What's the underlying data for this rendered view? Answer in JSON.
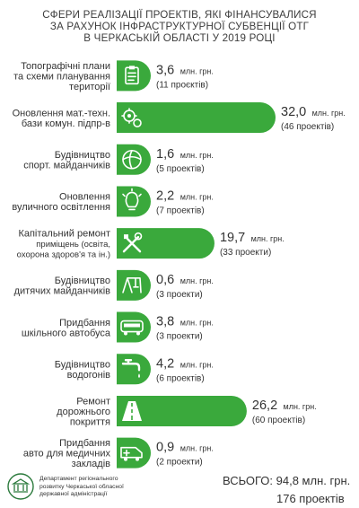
{
  "title": {
    "line1": "СФЕРИ РЕАЛІЗАЦІЇ ПРОЕКТІВ, ЯКІ ФІНАНСУВАЛИСЯ",
    "line2": "ЗА РАХУНОК ІНФРАСТРУКТУРНОЇ СУБВЕНЦІЇ ОТГ",
    "line3": "В ЧЕРКАСЬКІЙ ОБЛАСТІ У 2019 РОЦІ"
  },
  "colors": {
    "bar": "#3aa93c",
    "icon": "#ffffff",
    "text": "#333333"
  },
  "chart_data": {
    "type": "bar",
    "orientation": "horizontal",
    "unit": "млн. грн.",
    "categories": [
      [
        "Топографічні плани",
        "та схеми планування",
        "території"
      ],
      [
        "Оновлення мат.-техн.",
        "бази комун. підпр-в"
      ],
      [
        "Будівництво",
        "спорт. майданчиків"
      ],
      [
        "Оновлення",
        "вуличного освітлення"
      ],
      [
        "Капітальний ремонт",
        "приміщень (освіта,",
        "охорона здоров'я та ін.)"
      ],
      [
        "Будівництво",
        "дитячих майданчиків"
      ],
      [
        "Придбання",
        "шкільного автобуса"
      ],
      [
        "Будівництво",
        "водогонів"
      ],
      [
        "Ремонт",
        "дорожнього",
        "покриття"
      ],
      [
        "Придбання",
        "авто для медичних",
        "закладів"
      ]
    ],
    "values": [
      3.6,
      32.0,
      1.6,
      2.2,
      19.7,
      0.6,
      3.8,
      4.2,
      26.2,
      0.9
    ],
    "value_labels": [
      "3,6",
      "32,0",
      "1,6",
      "2,2",
      "19,7",
      "0,6",
      "3,8",
      "4,2",
      "26,2",
      "0,9"
    ],
    "unit_label": "млн. грн.",
    "projects_labels": [
      "(11 проєктів)",
      "(46 проектів)",
      "(5 проектів)",
      "(7 проектів)",
      "(33 проекти)",
      "(3 проекти)",
      "(3 проекти)",
      "(6 проектів)",
      "(60 проектів)",
      "(2 проекти)"
    ],
    "icons": [
      "clipboard-icon",
      "gears-icon",
      "ball-icon",
      "lightbulb-icon",
      "tools-icon",
      "playground-icon",
      "bus-icon",
      "faucet-icon",
      "road-icon",
      "ambulance-icon"
    ]
  },
  "total": {
    "sum": "ВСЬОГО: 94,8 млн. грн.",
    "projects": "176 проектів"
  },
  "footer": {
    "line1": "Департамент регіонального",
    "line2": "розвитку Черкаської обласної",
    "line3": "державної адміністрації"
  }
}
